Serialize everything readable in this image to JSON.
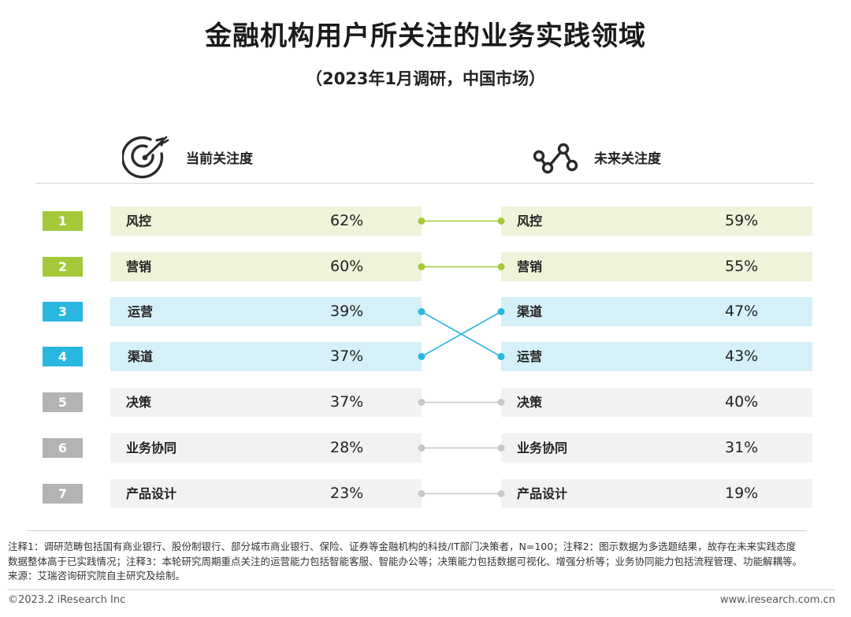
{
  "title": "金融机构用户所关注的业务实践领域",
  "subtitle": "（2023年1月调研，中国市场）",
  "left_header": {
    "label": "当前关注度",
    "icon": "target-icon"
  },
  "right_header": {
    "label": "未来关注度",
    "icon": "connection-nodes-icon"
  },
  "colors": {
    "green_dark": "#a3c93a",
    "green_light": "#eef3d9",
    "blue_dark": "#29b6e0",
    "blue_light": "#d6f0f9",
    "gray_dark": "#b3b3b3",
    "gray_light": "#f2f2f2",
    "green_line": "#a3c93a",
    "blue_line": "#29b6e0",
    "gray_line": "#c8c8c8"
  },
  "chart_data": {
    "type": "table",
    "ranks": [
      "1",
      "2",
      "3",
      "4",
      "5",
      "6",
      "7"
    ],
    "current": [
      {
        "label": "风控",
        "value": "62%",
        "group": "green"
      },
      {
        "label": "营销",
        "value": "60%",
        "group": "green"
      },
      {
        "label": "运营",
        "value": "39%",
        "group": "blue"
      },
      {
        "label": "渠道",
        "value": "37%",
        "group": "blue"
      },
      {
        "label": "决策",
        "value": "37%",
        "group": "gray"
      },
      {
        "label": "业务协同",
        "value": "28%",
        "group": "gray"
      },
      {
        "label": "产品设计",
        "value": "23%",
        "group": "gray"
      }
    ],
    "future": [
      {
        "label": "风控",
        "value": "59%",
        "group": "green"
      },
      {
        "label": "营销",
        "value": "55%",
        "group": "green"
      },
      {
        "label": "渠道",
        "value": "47%",
        "group": "blue"
      },
      {
        "label": "运营",
        "value": "43%",
        "group": "blue"
      },
      {
        "label": "决策",
        "value": "40%",
        "group": "gray"
      },
      {
        "label": "业务协同",
        "value": "31%",
        "group": "gray"
      },
      {
        "label": "产品设计",
        "value": "19%",
        "group": "gray"
      }
    ],
    "links": [
      [
        0,
        0
      ],
      [
        1,
        1
      ],
      [
        2,
        3
      ],
      [
        3,
        2
      ],
      [
        4,
        4
      ],
      [
        5,
        5
      ],
      [
        6,
        6
      ]
    ]
  },
  "notes": [
    "注释1：调研范畴包括国有商业银行、股份制银行、部分城市商业银行、保险、证券等金融机构的科技/IT部门决策者，N=100；注释2：图示数据为多选题结果，故存在未来实践态度",
    "数据整体高于已实践情况；注释3：本轮研究周期重点关注的运营能力包括智能客服、智能办公等；决策能力包括数据可视化、增强分析等；业务协同能力包括流程管理、功能解耦等。",
    "来源：艾瑞咨询研究院自主研究及绘制。"
  ],
  "footer": {
    "copyright": "©2023.2 iResearch Inc",
    "site": "www.iresearch.com.cn"
  }
}
